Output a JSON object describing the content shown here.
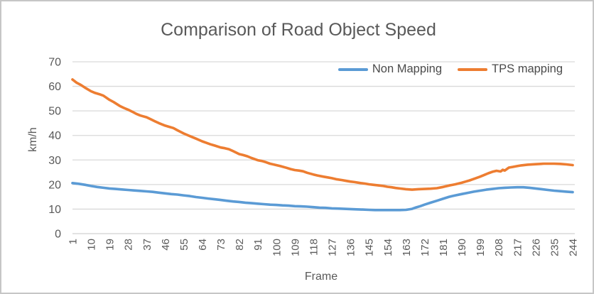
{
  "window": {
    "background": "#ffffff",
    "border_color": "#c6c6c6"
  },
  "chart_data": {
    "type": "line",
    "title": "Comparison of Road Object Speed",
    "xlabel": "Frame",
    "ylabel": "km/h",
    "xlim": [
      1,
      244
    ],
    "ylim": [
      0,
      70
    ],
    "x_ticks": [
      1,
      10,
      19,
      28,
      37,
      46,
      55,
      64,
      73,
      82,
      91,
      100,
      109,
      118,
      127,
      136,
      145,
      154,
      163,
      172,
      181,
      190,
      199,
      208,
      217,
      226,
      235,
      244
    ],
    "y_ticks": [
      0,
      10,
      20,
      30,
      40,
      50,
      60,
      70
    ],
    "grid": true,
    "gridline_color": "#d9d9d9",
    "axis_line_color": "#d0d0d0",
    "tick_label_color": "#595959",
    "title_color": "#595959",
    "legend_position": "top-right-inside",
    "series": [
      {
        "name": "Non Mapping",
        "color": "#5B9BD5",
        "points": [
          [
            1,
            20.6
          ],
          [
            4,
            20.3
          ],
          [
            7,
            19.9
          ],
          [
            10,
            19.4
          ],
          [
            13,
            19.0
          ],
          [
            16,
            18.7
          ],
          [
            19,
            18.4
          ],
          [
            22,
            18.2
          ],
          [
            25,
            18.0
          ],
          [
            28,
            17.8
          ],
          [
            31,
            17.6
          ],
          [
            34,
            17.4
          ],
          [
            37,
            17.2
          ],
          [
            40,
            17.0
          ],
          [
            43,
            16.7
          ],
          [
            46,
            16.4
          ],
          [
            49,
            16.1
          ],
          [
            52,
            15.9
          ],
          [
            55,
            15.6
          ],
          [
            58,
            15.3
          ],
          [
            61,
            14.9
          ],
          [
            64,
            14.6
          ],
          [
            67,
            14.3
          ],
          [
            70,
            14.0
          ],
          [
            73,
            13.7
          ],
          [
            76,
            13.4
          ],
          [
            79,
            13.1
          ],
          [
            82,
            12.9
          ],
          [
            85,
            12.6
          ],
          [
            88,
            12.4
          ],
          [
            91,
            12.2
          ],
          [
            94,
            12.0
          ],
          [
            97,
            11.8
          ],
          [
            100,
            11.7
          ],
          [
            103,
            11.5
          ],
          [
            106,
            11.4
          ],
          [
            109,
            11.2
          ],
          [
            112,
            11.1
          ],
          [
            115,
            11.0
          ],
          [
            118,
            10.8
          ],
          [
            121,
            10.6
          ],
          [
            124,
            10.5
          ],
          [
            127,
            10.3
          ],
          [
            130,
            10.2
          ],
          [
            133,
            10.1
          ],
          [
            136,
            10.0
          ],
          [
            139,
            9.9
          ],
          [
            142,
            9.8
          ],
          [
            145,
            9.7
          ],
          [
            148,
            9.6
          ],
          [
            152,
            9.6
          ],
          [
            156,
            9.6
          ],
          [
            160,
            9.6
          ],
          [
            163,
            9.7
          ],
          [
            166,
            10.1
          ],
          [
            168,
            10.7
          ],
          [
            170,
            11.2
          ],
          [
            172,
            11.8
          ],
          [
            175,
            12.6
          ],
          [
            178,
            13.4
          ],
          [
            181,
            14.2
          ],
          [
            184,
            15.0
          ],
          [
            187,
            15.6
          ],
          [
            190,
            16.1
          ],
          [
            193,
            16.6
          ],
          [
            196,
            17.1
          ],
          [
            199,
            17.5
          ],
          [
            202,
            17.9
          ],
          [
            205,
            18.2
          ],
          [
            208,
            18.5
          ],
          [
            211,
            18.7
          ],
          [
            214,
            18.8
          ],
          [
            217,
            18.9
          ],
          [
            220,
            18.9
          ],
          [
            223,
            18.7
          ],
          [
            226,
            18.4
          ],
          [
            229,
            18.1
          ],
          [
            232,
            17.8
          ],
          [
            235,
            17.5
          ],
          [
            238,
            17.3
          ],
          [
            241,
            17.1
          ],
          [
            244,
            16.9
          ]
        ]
      },
      {
        "name": "TPS mapping",
        "color": "#ED7D31",
        "points": [
          [
            1,
            62.8
          ],
          [
            3,
            61.5
          ],
          [
            5,
            60.6
          ],
          [
            7,
            59.5
          ],
          [
            10,
            58.0
          ],
          [
            12,
            57.3
          ],
          [
            14,
            56.8
          ],
          [
            16,
            56.2
          ],
          [
            19,
            54.5
          ],
          [
            21,
            53.6
          ],
          [
            24,
            52.0
          ],
          [
            26,
            51.2
          ],
          [
            28,
            50.5
          ],
          [
            30,
            49.7
          ],
          [
            32,
            48.8
          ],
          [
            34,
            48.1
          ],
          [
            37,
            47.4
          ],
          [
            39,
            46.6
          ],
          [
            41,
            45.8
          ],
          [
            43,
            45.0
          ],
          [
            46,
            44.0
          ],
          [
            48,
            43.5
          ],
          [
            50,
            43.0
          ],
          [
            52,
            42.1
          ],
          [
            55,
            40.8
          ],
          [
            57,
            40.1
          ],
          [
            59,
            39.4
          ],
          [
            61,
            38.7
          ],
          [
            64,
            37.6
          ],
          [
            66,
            37.0
          ],
          [
            68,
            36.4
          ],
          [
            70,
            35.9
          ],
          [
            73,
            35.1
          ],
          [
            75,
            34.8
          ],
          [
            77,
            34.4
          ],
          [
            79,
            33.6
          ],
          [
            82,
            32.4
          ],
          [
            84,
            32.0
          ],
          [
            86,
            31.5
          ],
          [
            88,
            30.8
          ],
          [
            91,
            29.9
          ],
          [
            93,
            29.6
          ],
          [
            95,
            29.1
          ],
          [
            97,
            28.5
          ],
          [
            100,
            27.9
          ],
          [
            102,
            27.5
          ],
          [
            105,
            26.8
          ],
          [
            107,
            26.3
          ],
          [
            109,
            25.9
          ],
          [
            111,
            25.7
          ],
          [
            113,
            25.4
          ],
          [
            115,
            24.8
          ],
          [
            118,
            24.1
          ],
          [
            120,
            23.7
          ],
          [
            123,
            23.2
          ],
          [
            125,
            22.9
          ],
          [
            127,
            22.6
          ],
          [
            129,
            22.2
          ],
          [
            132,
            21.8
          ],
          [
            134,
            21.5
          ],
          [
            136,
            21.2
          ],
          [
            138,
            21.0
          ],
          [
            141,
            20.6
          ],
          [
            143,
            20.4
          ],
          [
            145,
            20.1
          ],
          [
            147,
            19.9
          ],
          [
            150,
            19.6
          ],
          [
            152,
            19.4
          ],
          [
            154,
            19.1
          ],
          [
            156,
            18.9
          ],
          [
            158,
            18.6
          ],
          [
            160,
            18.4
          ],
          [
            163,
            18.1
          ],
          [
            166,
            17.9
          ],
          [
            169,
            18.1
          ],
          [
            172,
            18.2
          ],
          [
            175,
            18.3
          ],
          [
            178,
            18.5
          ],
          [
            181,
            19.0
          ],
          [
            184,
            19.6
          ],
          [
            187,
            20.1
          ],
          [
            190,
            20.7
          ],
          [
            192,
            21.2
          ],
          [
            194,
            21.7
          ],
          [
            196,
            22.3
          ],
          [
            199,
            23.2
          ],
          [
            201,
            23.9
          ],
          [
            203,
            24.6
          ],
          [
            205,
            25.2
          ],
          [
            207,
            25.6
          ],
          [
            209,
            25.3
          ],
          [
            210,
            26.0
          ],
          [
            211,
            25.7
          ],
          [
            213,
            26.9
          ],
          [
            215,
            27.2
          ],
          [
            217,
            27.5
          ],
          [
            219,
            27.8
          ],
          [
            222,
            28.1
          ],
          [
            226,
            28.3
          ],
          [
            230,
            28.5
          ],
          [
            233,
            28.5
          ],
          [
            235,
            28.5
          ],
          [
            238,
            28.4
          ],
          [
            241,
            28.2
          ],
          [
            244,
            27.9
          ]
        ]
      }
    ]
  }
}
